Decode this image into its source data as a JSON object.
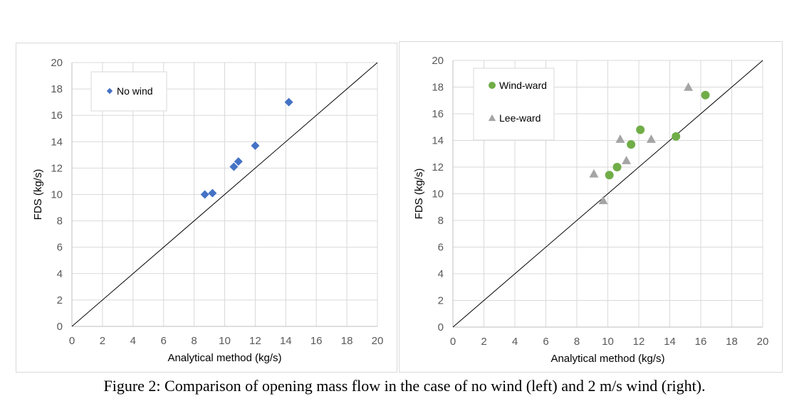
{
  "caption": "Figure 2: Comparison of opening mass flow in the case of no wind (left) and 2 m/s wind (right).",
  "chart_data": [
    {
      "type": "scatter",
      "xlabel": "Analytical method (kg/s)",
      "ylabel": "FDS (kg/s)",
      "xlim": [
        0,
        20
      ],
      "ylim": [
        0,
        20
      ],
      "xticks": [
        0,
        2,
        4,
        6,
        8,
        10,
        12,
        14,
        16,
        18,
        20
      ],
      "yticks": [
        0,
        2,
        4,
        6,
        8,
        10,
        12,
        14,
        16,
        18,
        20
      ],
      "grid": true,
      "legend": "top-left",
      "reference_line": [
        [
          0,
          0
        ],
        [
          20,
          20
        ]
      ],
      "series": [
        {
          "name": "No wind",
          "marker": "diamond",
          "color": "#4472c4",
          "points": [
            [
              8.7,
              10.0
            ],
            [
              9.2,
              10.1
            ],
            [
              10.6,
              12.1
            ],
            [
              10.9,
              12.5
            ],
            [
              12.0,
              13.7
            ],
            [
              14.2,
              17.0
            ]
          ]
        }
      ]
    },
    {
      "type": "scatter",
      "xlabel": "Analytical method (kg/s)",
      "ylabel": "FDS (kg/s)",
      "xlim": [
        0,
        20
      ],
      "ylim": [
        0,
        20
      ],
      "xticks": [
        0,
        2,
        4,
        6,
        8,
        10,
        12,
        14,
        16,
        18,
        20
      ],
      "yticks": [
        0,
        2,
        4,
        6,
        8,
        10,
        12,
        14,
        16,
        18,
        20
      ],
      "grid": true,
      "legend": "top-left",
      "reference_line": [
        [
          0,
          0
        ],
        [
          20,
          20
        ]
      ],
      "series": [
        {
          "name": "Wind-ward",
          "marker": "circle",
          "color": "#70ad47",
          "points": [
            [
              10.1,
              11.4
            ],
            [
              10.6,
              12.0
            ],
            [
              11.5,
              13.7
            ],
            [
              12.1,
              14.8
            ],
            [
              14.4,
              14.3
            ],
            [
              16.3,
              17.4
            ]
          ]
        },
        {
          "name": "Lee-ward",
          "marker": "triangle",
          "color": "#a5a5a5",
          "points": [
            [
              9.1,
              11.5
            ],
            [
              9.7,
              9.5
            ],
            [
              10.8,
              14.1
            ],
            [
              11.2,
              12.5
            ],
            [
              12.8,
              14.1
            ],
            [
              15.2,
              18.0
            ]
          ]
        }
      ]
    }
  ]
}
